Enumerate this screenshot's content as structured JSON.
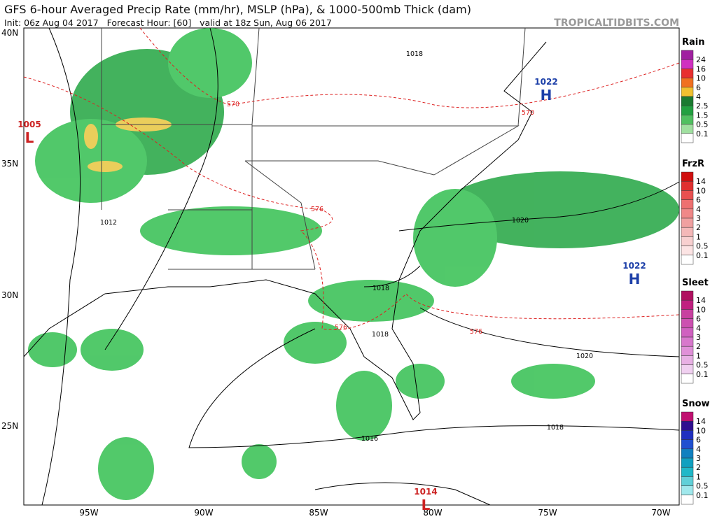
{
  "header": {
    "title": "GFS 6-hour Averaged Precip Rate (mm/hr), MSLP (hPa), & 1000-500mb Thick (dam)",
    "subtitle": "Init: 06z Aug 04 2017   Forecast Hour: [60]   valid at 18z Sun, Aug 06 2017",
    "source": "TROPICALTIDBITS.COM"
  },
  "map": {
    "lat_labels": [
      "40N",
      "35N",
      "30N",
      "25N"
    ],
    "lon_labels": [
      "95W",
      "90W",
      "85W",
      "80W",
      "75W",
      "70W"
    ],
    "pressure_centers": [
      {
        "value": "1005",
        "label": "L"
      },
      {
        "value": "1022",
        "label": "H"
      },
      {
        "value": "1022",
        "label": "H"
      },
      {
        "value": "1014",
        "label": "L"
      }
    ],
    "isobar_labels": [
      "1018",
      "1012",
      "1020",
      "1018",
      "1018",
      "1020",
      "1018",
      "1016"
    ],
    "thickness_labels": [
      "570",
      "570",
      "576",
      "576",
      "576"
    ]
  },
  "legend": [
    {
      "title": "Rain",
      "labels": [
        "24",
        "16",
        "10",
        "6",
        "4",
        "2.5",
        "1.5",
        "0.5",
        "0.1"
      ]
    },
    {
      "title": "FrzR",
      "labels": [
        "14",
        "10",
        "6",
        "4",
        "3",
        "2",
        "1",
        "0.5",
        "0.1"
      ]
    },
    {
      "title": "Sleet",
      "labels": [
        "14",
        "10",
        "6",
        "4",
        "3",
        "2",
        "1",
        "0.5",
        "0.1"
      ]
    },
    {
      "title": "Snow",
      "labels": [
        "14",
        "10",
        "6",
        "4",
        "3",
        "2",
        "1",
        "0.5",
        "0.1"
      ]
    }
  ]
}
